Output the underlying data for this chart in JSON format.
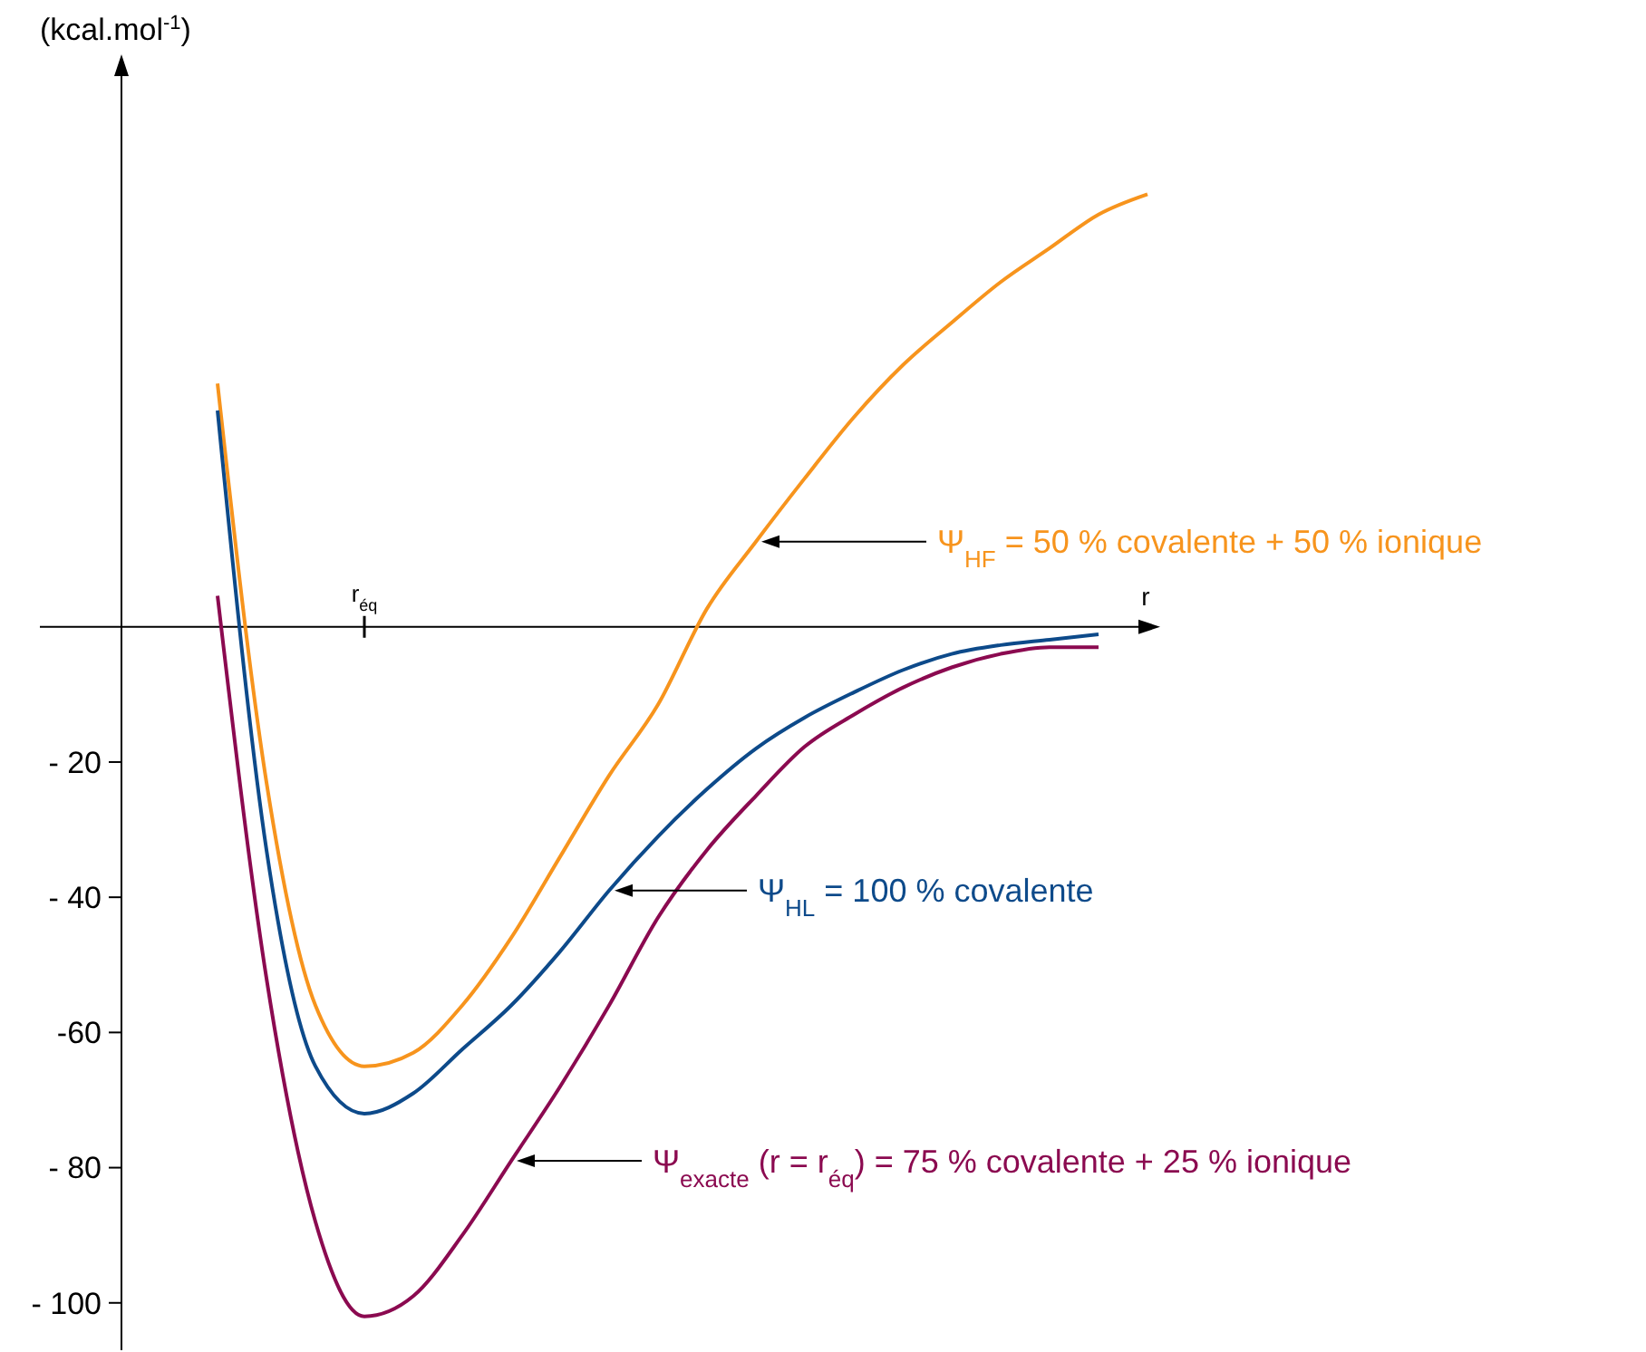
{
  "chart_data": {
    "type": "line",
    "xlabel": "r",
    "ylabel": "(kcal.mol$^{-1}$)",
    "categories": [
      null,
      null,
      null,
      "r$_{éq}$",
      null,
      null,
      null,
      null,
      null,
      null,
      null,
      null,
      null,
      null,
      null,
      null,
      null,
      null,
      null,
      null
    ],
    "ylim": [
      -107,
      82
    ],
    "yticks": [
      {
        "value": -20,
        "label": "- 20"
      },
      {
        "value": -40,
        "label": "- 40"
      },
      {
        "value": -60,
        "label": "-60"
      },
      {
        "value": -80,
        "label": "- 80"
      },
      {
        "value": -100,
        "label": "- 100"
      }
    ],
    "series": [
      {
        "name": "Ψ$_{HF}$ = 50 % covalente + 50 % ionique",
        "color": "#f7941d",
        "values": [
          36,
          -23,
          -56,
          -65,
          -63,
          -56,
          -46,
          -34,
          -22,
          -11.5,
          2.7,
          12.6,
          22,
          31,
          38.7,
          45,
          51,
          56,
          61,
          64
        ]
      },
      {
        "name": "Ψ$_{HL}$ = 100 % covalente",
        "color": "#0d4a8a",
        "values": [
          32,
          -33,
          -65,
          -72,
          -69,
          -62.5,
          -56,
          -48,
          -39,
          -31,
          -24,
          -18,
          -13.4,
          -9.7,
          -6.4,
          -4,
          -2.7,
          -1.9,
          -1.1,
          null
        ]
      },
      {
        "name": "Ψ$_{exacte}$ (r = r$_{éq}$) = 75 % covalente + 25 % ionique",
        "color": "#8b0a50",
        "values": [
          4.6,
          -52,
          -88,
          -102,
          -99,
          -90,
          -79,
          -68,
          -56,
          -43,
          -33,
          -25,
          -17.7,
          -13,
          -9,
          -6,
          -4,
          -3,
          -3,
          null
        ]
      }
    ]
  }
}
